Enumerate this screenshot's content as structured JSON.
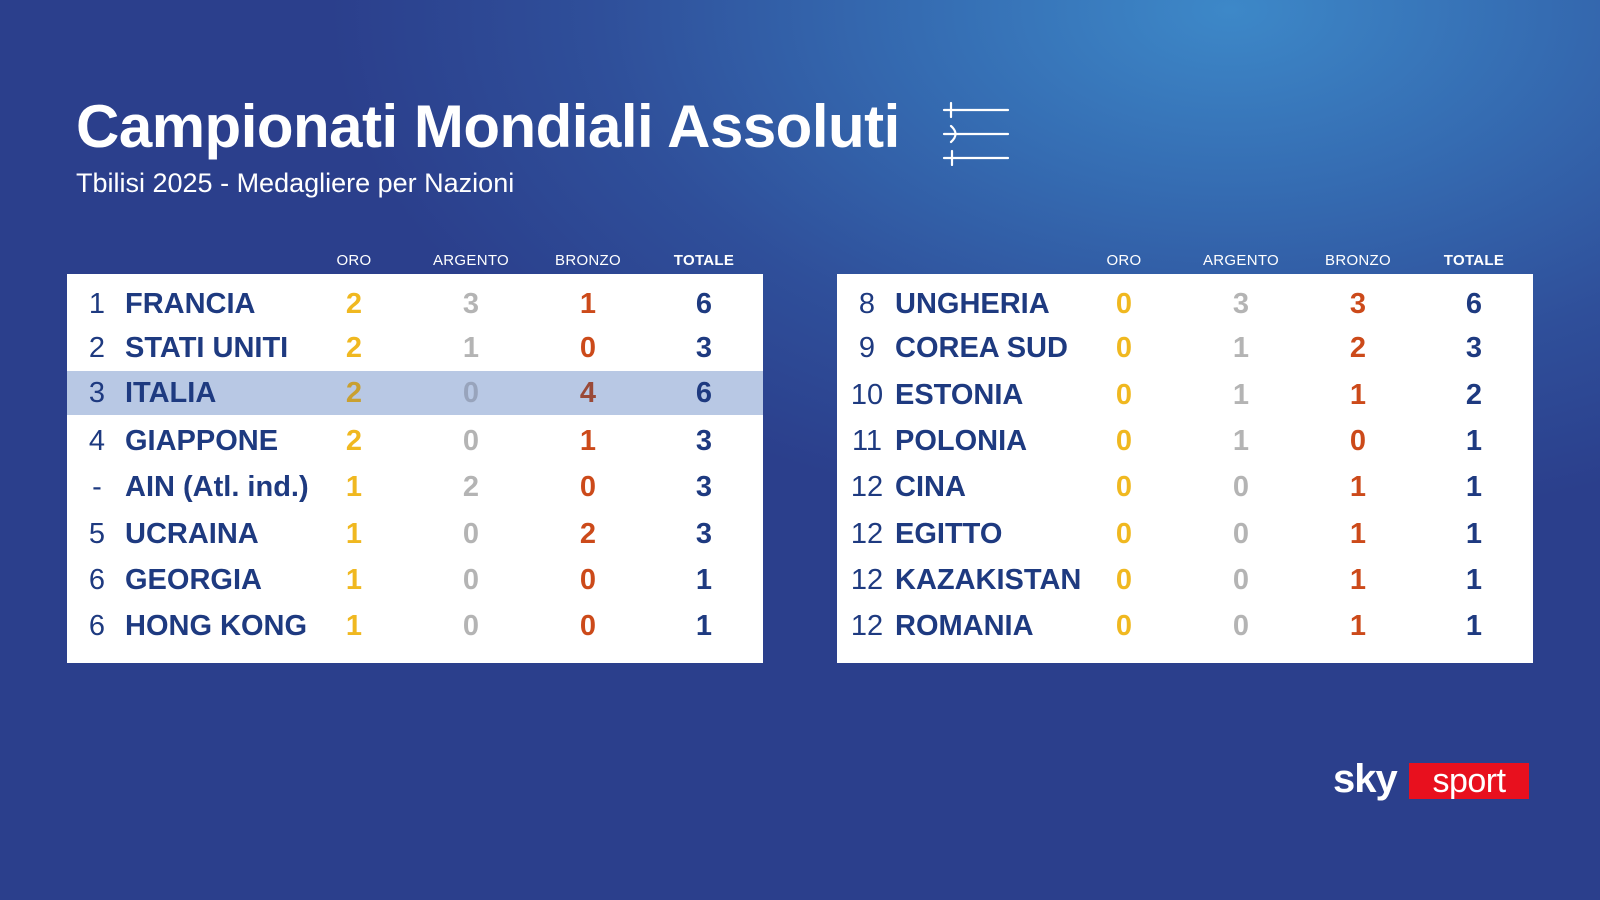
{
  "header": {
    "title": "Campionati Mondiali Assoluti",
    "subtitle": "Tbilisi 2025 - Medagliere per Nazioni",
    "icon": "fencing-swords-icon"
  },
  "columns": {
    "gold": "ORO",
    "silver": "ARGENTO",
    "bronze": "BRONZO",
    "total": "TOTALE"
  },
  "medal_colors": {
    "gold": "#f0b820",
    "silver": "#b4b4b4",
    "bronze": "#cc4a1a",
    "total": "#1e3a80",
    "highlight_row": "#b8c8e4"
  },
  "left_table": [
    {
      "rank": "1",
      "country": "FRANCIA",
      "gold": "2",
      "silver": "3",
      "bronze": "1",
      "total": "6",
      "highlight": false
    },
    {
      "rank": "2",
      "country": "STATI UNITI",
      "gold": "2",
      "silver": "1",
      "bronze": "0",
      "total": "3",
      "highlight": false
    },
    {
      "rank": "3",
      "country": "ITALIA",
      "gold": "2",
      "silver": "0",
      "bronze": "4",
      "total": "6",
      "highlight": true
    },
    {
      "rank": "4",
      "country": "GIAPPONE",
      "gold": "2",
      "silver": "0",
      "bronze": "1",
      "total": "3",
      "highlight": false
    },
    {
      "rank": "-",
      "country": "AIN (Atl. ind.)",
      "gold": "1",
      "silver": "2",
      "bronze": "0",
      "total": "3",
      "highlight": false
    },
    {
      "rank": "5",
      "country": "UCRAINA",
      "gold": "1",
      "silver": "0",
      "bronze": "2",
      "total": "3",
      "highlight": false
    },
    {
      "rank": "6",
      "country": "GEORGIA",
      "gold": "1",
      "silver": "0",
      "bronze": "0",
      "total": "1",
      "highlight": false
    },
    {
      "rank": "6",
      "country": "HONG KONG",
      "gold": "1",
      "silver": "0",
      "bronze": "0",
      "total": "1",
      "highlight": false
    }
  ],
  "right_table": [
    {
      "rank": "8",
      "country": "UNGHERIA",
      "gold": "0",
      "silver": "3",
      "bronze": "3",
      "total": "6",
      "highlight": false
    },
    {
      "rank": "9",
      "country": "COREA SUD",
      "gold": "0",
      "silver": "1",
      "bronze": "2",
      "total": "3",
      "highlight": false
    },
    {
      "rank": "10",
      "country": "ESTONIA",
      "gold": "0",
      "silver": "1",
      "bronze": "1",
      "total": "2",
      "highlight": false
    },
    {
      "rank": "11",
      "country": "POLONIA",
      "gold": "0",
      "silver": "1",
      "bronze": "0",
      "total": "1",
      "highlight": false
    },
    {
      "rank": "12",
      "country": "CINA",
      "gold": "0",
      "silver": "0",
      "bronze": "1",
      "total": "1",
      "highlight": false
    },
    {
      "rank": "12",
      "country": "EGITTO",
      "gold": "0",
      "silver": "0",
      "bronze": "1",
      "total": "1",
      "highlight": false
    },
    {
      "rank": "12",
      "country": "KAZAKISTAN",
      "gold": "0",
      "silver": "0",
      "bronze": "1",
      "total": "1",
      "highlight": false
    },
    {
      "rank": "12",
      "country": "ROMANIA",
      "gold": "0",
      "silver": "0",
      "bronze": "1",
      "total": "1",
      "highlight": false
    }
  ],
  "logo": {
    "part1": "sky",
    "part2": "sport",
    "accent": "#e8101e"
  }
}
